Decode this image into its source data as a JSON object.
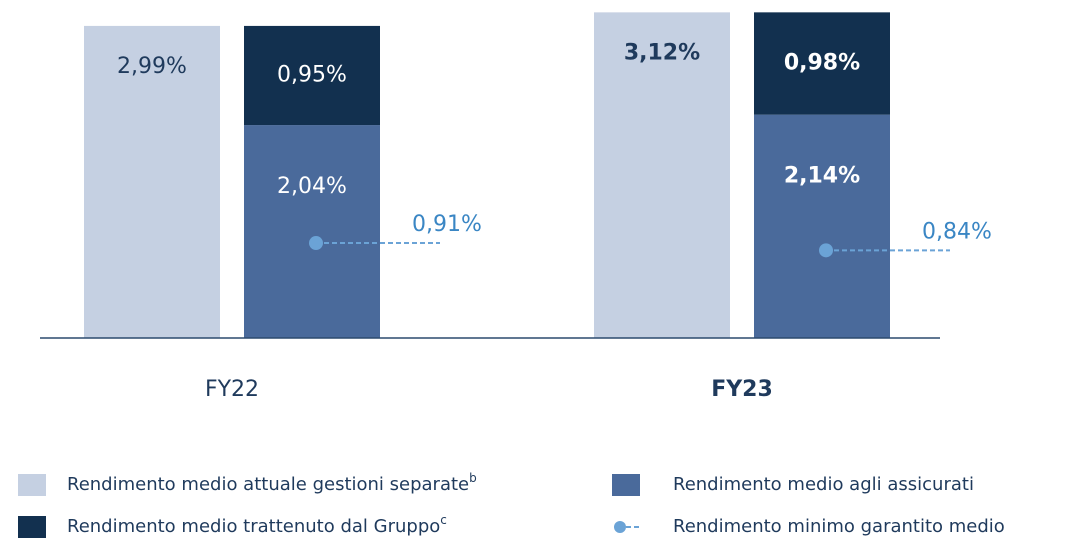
{
  "chart_data": {
    "type": "bar",
    "categories": [
      "FY22",
      "FY23"
    ],
    "bold_category_index": 1,
    "ylim": [
      0,
      3.2
    ],
    "series": [
      {
        "name": "Rendimento medio attuale gestioni separate",
        "superscript": "b",
        "kind": "bar",
        "color": "#c5d0e2",
        "label_color": "#1f3a5c",
        "values": [
          2.99,
          3.12
        ],
        "value_labels": [
          "2,99%",
          "3,12%"
        ]
      },
      {
        "name": "Rendimento medio agli assicurati",
        "kind": "stacked",
        "color": "#4a6a9b",
        "label_color": "#ffffff",
        "values": [
          2.04,
          2.14
        ],
        "value_labels": [
          "2,04%",
          "2,14%"
        ]
      },
      {
        "name": "Rendimento medio trattenuto dal Gruppo",
        "superscript": "c",
        "kind": "stacked",
        "color": "#12304f",
        "label_color": "#ffffff",
        "values": [
          0.95,
          0.98
        ],
        "value_labels": [
          "0,95%",
          "0,98%"
        ]
      },
      {
        "name": "Rendimento minimo garantito medio",
        "kind": "marker",
        "color": "#6ba3d6",
        "label_color": "#3a86c4",
        "values": [
          0.91,
          0.84
        ],
        "value_labels": [
          "0,91%",
          "0,84%"
        ]
      }
    ]
  }
}
